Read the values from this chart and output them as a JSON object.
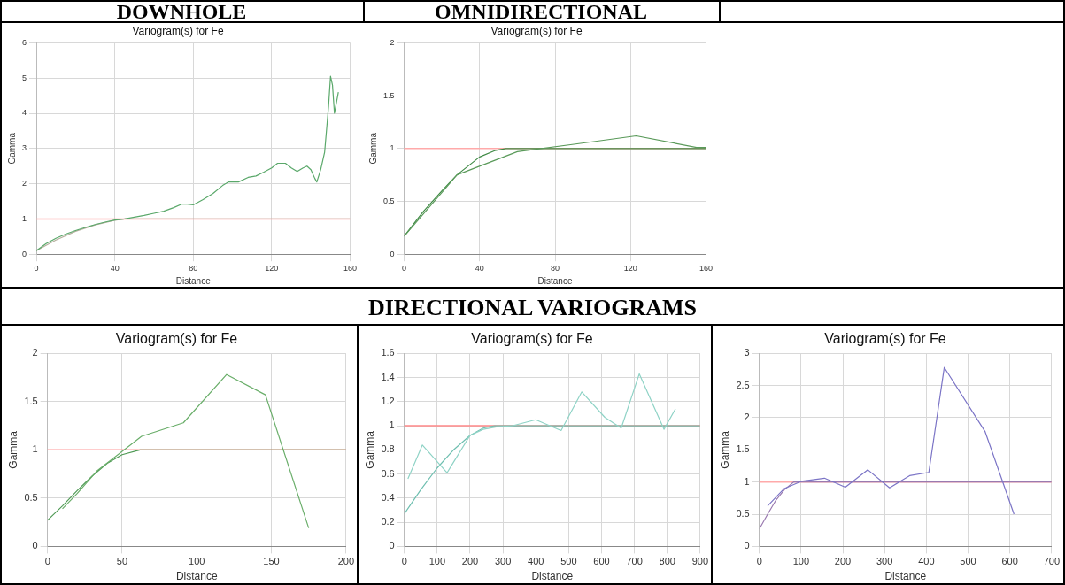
{
  "chart_data": [
    {
      "type": "line",
      "subtitle": "DOWNHOLE",
      "title": "Variogram(s) for Fe",
      "xlabel": "Distance",
      "ylabel": "Gamma",
      "xlim": [
        0,
        160
      ],
      "xticks": [
        0,
        40,
        80,
        120,
        160
      ],
      "ylim": [
        0,
        6
      ],
      "yticks": [
        0,
        1,
        2,
        3,
        4,
        5,
        6
      ],
      "grid": true,
      "marker": "none",
      "line_style": "solid",
      "ref_lines": [
        {
          "axis": "y",
          "value": 1,
          "color": "#ffaaaa"
        }
      ],
      "series": [
        {
          "color": "#5aa86a",
          "x": [
            0,
            5,
            10,
            15,
            20,
            25,
            30,
            35,
            40,
            45,
            50,
            55,
            60,
            65,
            70,
            74,
            77,
            80,
            85,
            90,
            95,
            98,
            103,
            108,
            112,
            116,
            120,
            123,
            127,
            130,
            133,
            136,
            138,
            140,
            142,
            143,
            145,
            147,
            149,
            150,
            151,
            152,
            153,
            154
          ],
          "values": [
            0.1,
            0.3,
            0.45,
            0.57,
            0.67,
            0.76,
            0.84,
            0.91,
            0.97,
            1.0,
            1.05,
            1.1,
            1.16,
            1.22,
            1.32,
            1.42,
            1.42,
            1.4,
            1.55,
            1.72,
            1.95,
            2.05,
            2.05,
            2.18,
            2.22,
            2.33,
            2.45,
            2.58,
            2.58,
            2.45,
            2.35,
            2.45,
            2.5,
            2.4,
            2.15,
            2.05,
            2.4,
            2.9,
            4.2,
            5.05,
            4.8,
            4.0,
            4.3,
            4.6
          ]
        },
        {
          "color": "#b8b0a0",
          "x": [
            0,
            10,
            20,
            30,
            40,
            45,
            160
          ],
          "values": [
            0.1,
            0.4,
            0.65,
            0.83,
            0.96,
            1.0,
            1.0
          ]
        }
      ]
    },
    {
      "type": "line",
      "subtitle": "OMNIDIRECTIONAL",
      "title": "Variogram(s) for Fe",
      "xlabel": "Distance",
      "ylabel": "Gamma",
      "xlim": [
        0,
        160
      ],
      "xticks": [
        0,
        40,
        80,
        120,
        160
      ],
      "ylim": [
        0,
        2
      ],
      "yticks": [
        0,
        0.5,
        1,
        1.5,
        2
      ],
      "grid": true,
      "marker": "none",
      "line_style": "solid",
      "ref_lines": [
        {
          "axis": "y",
          "value": 1,
          "color": "#ffaaaa"
        }
      ],
      "series": [
        {
          "color": "#5a9a5a",
          "x": [
            0,
            28,
            60,
            90,
            123,
            155,
            160
          ],
          "values": [
            0.17,
            0.75,
            0.97,
            1.04,
            1.12,
            1.01,
            1.01
          ]
        },
        {
          "color": "#3f8a45",
          "x": [
            0,
            10,
            20,
            28,
            40,
            48,
            54,
            160
          ],
          "values": [
            0.17,
            0.4,
            0.6,
            0.75,
            0.92,
            0.98,
            1.0,
            1.0
          ]
        }
      ]
    },
    {
      "type": "line",
      "title": "Variogram(s) for Fe",
      "xlabel": "Distance",
      "ylabel": "Gamma",
      "xlim": [
        0,
        200
      ],
      "xticks": [
        0,
        50,
        100,
        150,
        200
      ],
      "ylim": [
        0,
        2
      ],
      "yticks": [
        0,
        0.5,
        1,
        1.5,
        2
      ],
      "grid": true,
      "marker": "none",
      "line_style": "solid",
      "ref_lines": [
        {
          "axis": "y",
          "value": 1,
          "color": "#ff9999"
        }
      ],
      "series": [
        {
          "color": "#6aae6a",
          "x": [
            10,
            20,
            33,
            63,
            91,
            120,
            146,
            175
          ],
          "values": [
            0.39,
            0.55,
            0.78,
            1.14,
            1.28,
            1.78,
            1.57,
            0.19
          ]
        },
        {
          "color": "#4f9a55",
          "x": [
            0,
            10,
            20,
            30,
            40,
            50,
            62,
            200
          ],
          "values": [
            0.27,
            0.42,
            0.58,
            0.73,
            0.86,
            0.95,
            1.0,
            1.0
          ]
        }
      ]
    },
    {
      "type": "line",
      "subtitle": "DIRECTIONAL VARIOGRAMS",
      "title": "Variogram(s) for Fe",
      "xlabel": "Distance",
      "ylabel": "Gamma",
      "xlim": [
        0,
        900
      ],
      "xticks": [
        0,
        100,
        200,
        300,
        400,
        500,
        600,
        700,
        800,
        900
      ],
      "ylim": [
        0,
        1.6
      ],
      "yticks": [
        0,
        0.2,
        0.4,
        0.6,
        0.8,
        1,
        1.2,
        1.4,
        1.6
      ],
      "grid": true,
      "marker": "none",
      "line_style": "solid",
      "ref_lines": [
        {
          "axis": "y",
          "value": 1,
          "color": "#ff8888"
        }
      ],
      "series": [
        {
          "color": "#8fd3c6",
          "x": [
            11,
            55,
            130,
            200,
            240,
            280,
            330,
            400,
            477,
            540,
            610,
            660,
            715,
            790,
            825
          ],
          "values": [
            0.56,
            0.84,
            0.61,
            0.92,
            0.97,
            0.99,
            1.0,
            1.05,
            0.96,
            1.28,
            1.07,
            0.98,
            1.43,
            0.97,
            1.14
          ]
        },
        {
          "color": "#6fbfb0",
          "x": [
            0,
            50,
            100,
            150,
            200,
            240,
            275,
            900
          ],
          "values": [
            0.27,
            0.47,
            0.65,
            0.8,
            0.92,
            0.98,
            1.0,
            1.0
          ]
        }
      ]
    },
    {
      "type": "line",
      "title": "Variogram(s) for Fe",
      "xlabel": "Distance",
      "ylabel": "Gamma",
      "xlim": [
        0,
        700
      ],
      "xticks": [
        0,
        100,
        200,
        300,
        400,
        500,
        600,
        700
      ],
      "ylim": [
        0,
        3
      ],
      "yticks": [
        0,
        0.5,
        1,
        1.5,
        2,
        2.5,
        3
      ],
      "grid": true,
      "marker": "none",
      "line_style": "solid",
      "ref_lines": [
        {
          "axis": "y",
          "value": 1,
          "color": "#ffaaaa"
        }
      ],
      "series": [
        {
          "color": "#7b74c6",
          "x": [
            20,
            60,
            100,
            156,
            206,
            260,
            312,
            360,
            406,
            443,
            541,
            610
          ],
          "values": [
            0.63,
            0.9,
            1.01,
            1.06,
            0.92,
            1.19,
            0.91,
            1.1,
            1.15,
            2.78,
            1.78,
            0.5
          ]
        },
        {
          "color": "#9a7ab0",
          "x": [
            0,
            20,
            40,
            60,
            82,
            700
          ],
          "values": [
            0.27,
            0.5,
            0.72,
            0.88,
            1.0,
            1.0
          ]
        }
      ]
    }
  ]
}
